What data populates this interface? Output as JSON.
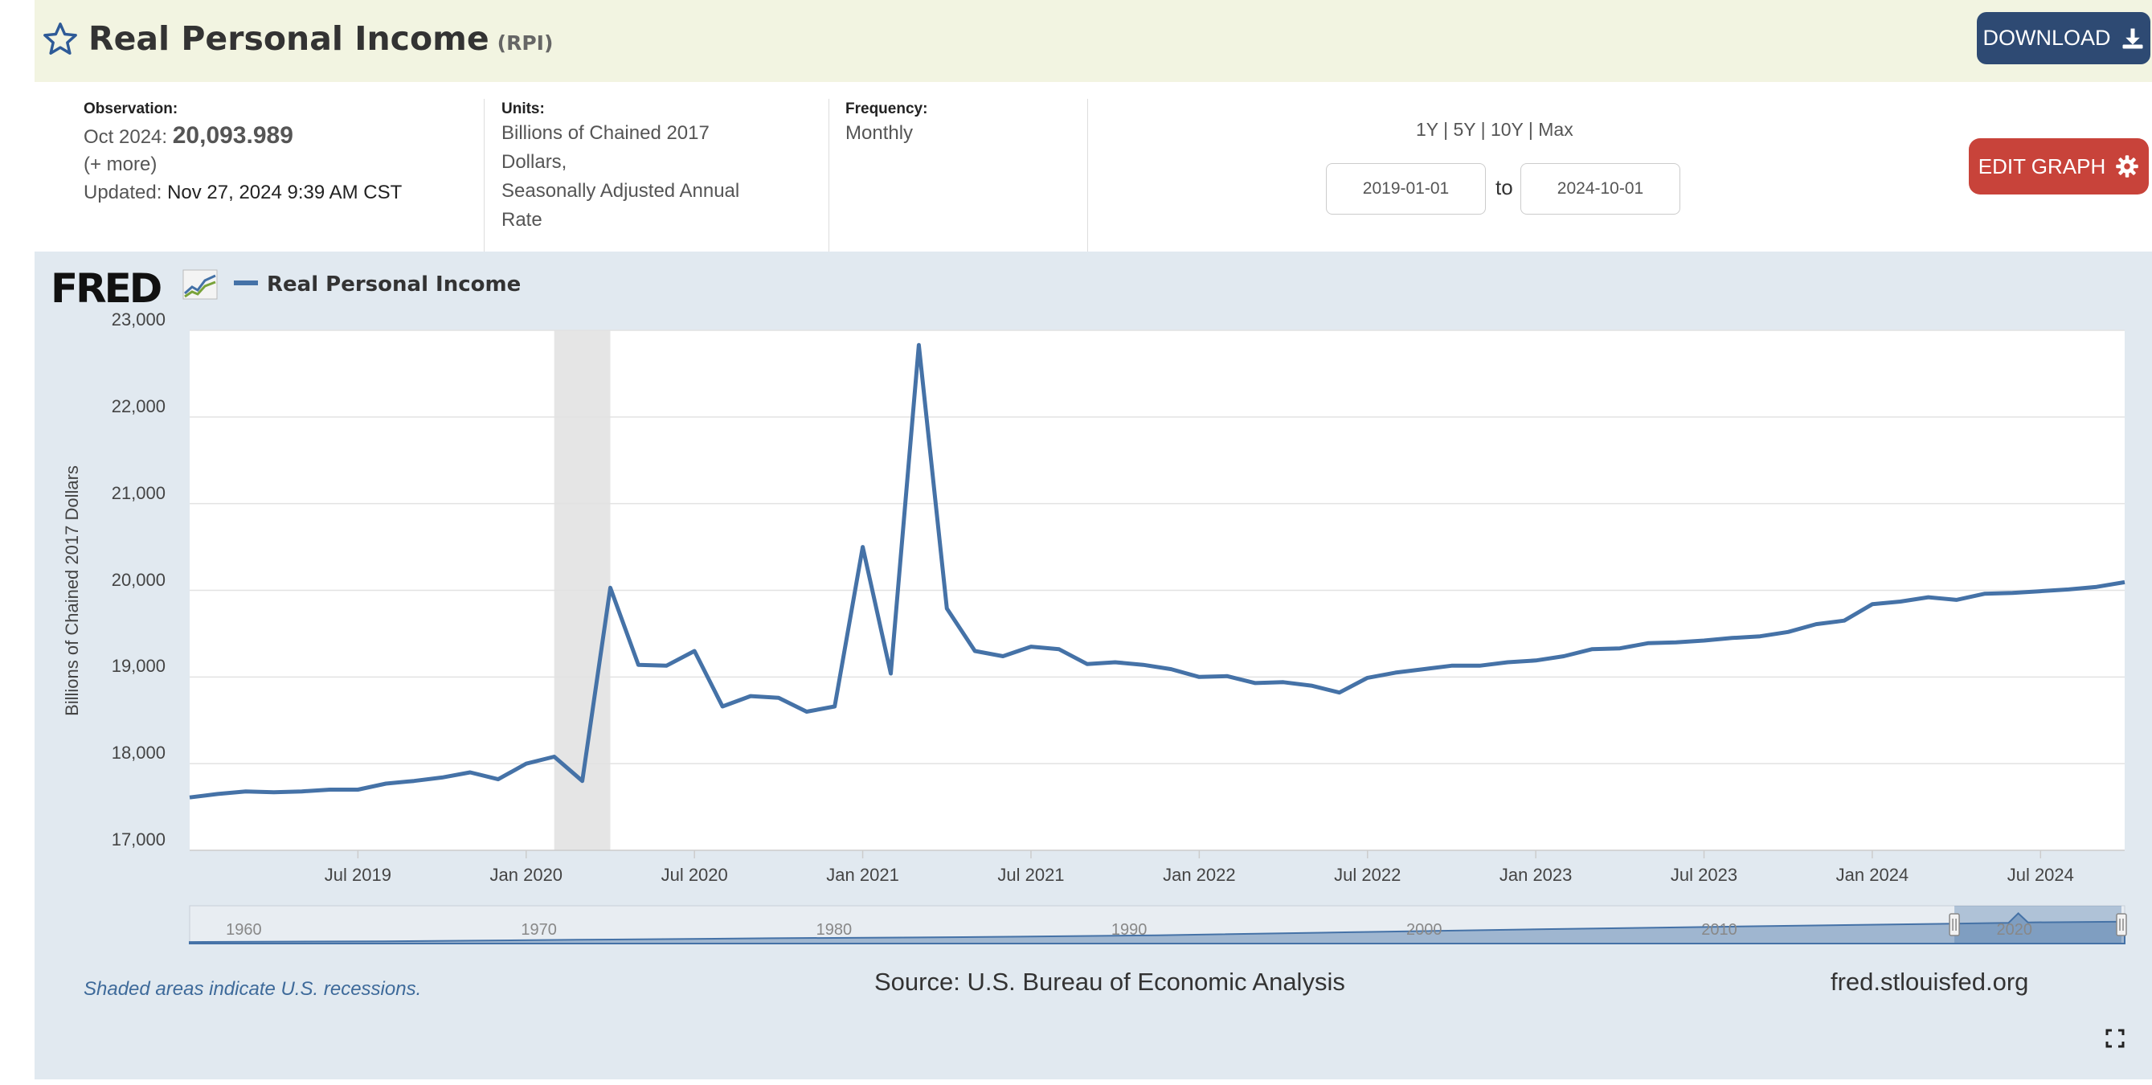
{
  "header": {
    "title": "Real Personal Income",
    "series_id": "(RPI)",
    "download_label": "DOWNLOAD",
    "star_icon": "star-outline-icon",
    "download_icon": "download-icon"
  },
  "meta": {
    "observation_label": "Observation:",
    "observation_date": "Oct 2024:",
    "observation_value": "20,093.989",
    "more": "(+ more)",
    "updated_label": "Updated:",
    "updated_value": "Nov 27, 2024 9:39 AM CST",
    "units_label": "Units:",
    "units_lines": [
      "Billions of Chained 2017",
      "Dollars,",
      "Seasonally Adjusted Annual",
      "Rate"
    ],
    "frequency_label": "Frequency:",
    "frequency_value": "Monthly"
  },
  "controls": {
    "ranges": [
      "1Y",
      "5Y",
      "10Y",
      "Max"
    ],
    "separator": "|",
    "start_date": "2019-01-01",
    "to_label": "to",
    "end_date": "2024-10-01",
    "edit_label": "EDIT GRAPH",
    "edit_icon": "gear-icon"
  },
  "footer": {
    "note": "Shaded areas indicate U.S. recessions.",
    "source": "Source: U.S. Bureau of Economic Analysis",
    "site": "fred.stlouisfed.org",
    "fullscreen_icon": "fullscreen-icon"
  },
  "logo": {
    "text": "FRED",
    "icon": "fred-chart-icon"
  },
  "colors": {
    "line": "#4572a7",
    "header_bg": "#f2f4e1",
    "graph_bg": "#e1e9f0",
    "download_bg": "#2e4a73",
    "edit_bg": "#c8433a",
    "recession": "#e5e5e5"
  },
  "chart_data": {
    "type": "line",
    "ylabel": "Billions of Chained 2017 Dollars",
    "ylim": [
      17000,
      23000
    ],
    "yticks": [
      17000,
      18000,
      19000,
      20000,
      21000,
      22000,
      23000
    ],
    "ytick_labels": [
      "17,000",
      "18,000",
      "19,000",
      "20,000",
      "21,000",
      "22,000",
      "23,000"
    ],
    "xticks": [
      "2019-07",
      "2020-01",
      "2020-07",
      "2021-01",
      "2021-07",
      "2022-01",
      "2022-07",
      "2023-01",
      "2023-07",
      "2024-01",
      "2024-07"
    ],
    "xtick_labels": [
      "Jul 2019",
      "Jan 2020",
      "Jul 2020",
      "Jan 2021",
      "Jul 2021",
      "Jan 2022",
      "Jul 2022",
      "Jan 2023",
      "Jul 2023",
      "Jan 2024",
      "Jul 2024"
    ],
    "x_range": [
      "2019-01",
      "2024-10"
    ],
    "recessions": [
      [
        "2020-02",
        "2020-04"
      ]
    ],
    "legend": "top-left",
    "grid": true,
    "series": [
      {
        "name": "Real Personal Income",
        "start": "2019-01",
        "values": [
          17610,
          17650,
          17680,
          17670,
          17680,
          17700,
          17700,
          17770,
          17800,
          17840,
          17900,
          17820,
          18000,
          18080,
          17800,
          20030,
          19140,
          19130,
          19300,
          18660,
          18780,
          18760,
          18600,
          18660,
          20500,
          19040,
          22830,
          19790,
          19300,
          19240,
          19350,
          19320,
          19150,
          19170,
          19140,
          19090,
          19000,
          19010,
          18930,
          18940,
          18900,
          18820,
          18990,
          19050,
          19090,
          19130,
          19130,
          19170,
          19190,
          19240,
          19320,
          19330,
          19390,
          19400,
          19420,
          19450,
          19470,
          19520,
          19610,
          19650,
          19840,
          19870,
          19920,
          19890,
          19960,
          19970,
          19990,
          20010,
          20040,
          20094
        ]
      }
    ],
    "navigator": {
      "labels": [
        "1960",
        "1970",
        "1980",
        "1990",
        "2000",
        "2010",
        "2020"
      ],
      "handle_icon": "navigator-handle-icon"
    }
  }
}
